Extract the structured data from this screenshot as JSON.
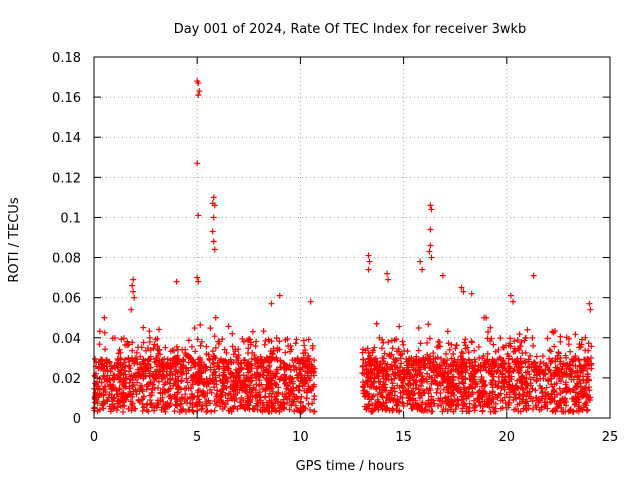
{
  "chart_data": {
    "type": "scatter",
    "title": "Day 001 of 2024, Rate Of TEC Index for receiver 3wkb",
    "xlabel": "GPS time / hours",
    "ylabel": "ROTI / TECUs",
    "xlim": [
      0,
      25
    ],
    "ylim": [
      0,
      0.18
    ],
    "x_ticks": [
      0,
      5,
      10,
      15,
      20,
      25
    ],
    "y_ticks": [
      0,
      0.02,
      0.04,
      0.06,
      0.08,
      0.1,
      0.12,
      0.14,
      0.16,
      0.18
    ],
    "x_tick_labels": [
      "0",
      "5",
      "10",
      "15",
      "20",
      "25"
    ],
    "y_tick_labels": [
      "0",
      "0.02",
      "0.04",
      "0.06",
      "0.08",
      "0.1",
      "0.12",
      "0.14",
      "0.16",
      "0.18"
    ],
    "grid": true,
    "marker": "+",
    "color": "#ff0000",
    "series": [
      {
        "name": "ROTI",
        "segments": [
          {
            "x_start": 0.0,
            "x_end": 10.7,
            "typical_max": 0.035
          },
          {
            "x_start": 13.0,
            "x_end": 24.1,
            "typical_max": 0.035
          }
        ],
        "notable_points": [
          {
            "x": 5.0,
            "y": 0.168
          },
          {
            "x": 5.05,
            "y": 0.167
          },
          {
            "x": 5.1,
            "y": 0.163
          },
          {
            "x": 5.05,
            "y": 0.161
          },
          {
            "x": 5.0,
            "y": 0.127
          },
          {
            "x": 5.05,
            "y": 0.101
          },
          {
            "x": 5.8,
            "y": 0.11
          },
          {
            "x": 5.75,
            "y": 0.107
          },
          {
            "x": 5.85,
            "y": 0.106
          },
          {
            "x": 5.8,
            "y": 0.1
          },
          {
            "x": 5.75,
            "y": 0.093
          },
          {
            "x": 5.8,
            "y": 0.088
          },
          {
            "x": 5.85,
            "y": 0.084
          },
          {
            "x": 5.0,
            "y": 0.07
          },
          {
            "x": 5.05,
            "y": 0.068
          },
          {
            "x": 4.0,
            "y": 0.068
          },
          {
            "x": 1.9,
            "y": 0.069
          },
          {
            "x": 1.85,
            "y": 0.066
          },
          {
            "x": 1.9,
            "y": 0.063
          },
          {
            "x": 1.95,
            "y": 0.06
          },
          {
            "x": 1.8,
            "y": 0.054
          },
          {
            "x": 16.3,
            "y": 0.106
          },
          {
            "x": 16.35,
            "y": 0.104
          },
          {
            "x": 16.3,
            "y": 0.094
          },
          {
            "x": 16.3,
            "y": 0.086
          },
          {
            "x": 16.25,
            "y": 0.083
          },
          {
            "x": 16.35,
            "y": 0.08
          },
          {
            "x": 15.8,
            "y": 0.078
          },
          {
            "x": 13.3,
            "y": 0.081
          },
          {
            "x": 13.35,
            "y": 0.078
          },
          {
            "x": 13.3,
            "y": 0.074
          },
          {
            "x": 15.9,
            "y": 0.074
          },
          {
            "x": 14.2,
            "y": 0.072
          },
          {
            "x": 14.25,
            "y": 0.069
          },
          {
            "x": 16.9,
            "y": 0.071
          },
          {
            "x": 17.8,
            "y": 0.065
          },
          {
            "x": 17.9,
            "y": 0.063
          },
          {
            "x": 18.3,
            "y": 0.062
          },
          {
            "x": 20.2,
            "y": 0.061
          },
          {
            "x": 20.3,
            "y": 0.058
          },
          {
            "x": 21.3,
            "y": 0.071
          },
          {
            "x": 9.0,
            "y": 0.061
          },
          {
            "x": 8.6,
            "y": 0.057
          },
          {
            "x": 10.5,
            "y": 0.058
          },
          {
            "x": 24.0,
            "y": 0.057
          },
          {
            "x": 24.05,
            "y": 0.054
          },
          {
            "x": 0.5,
            "y": 0.05
          },
          {
            "x": 5.9,
            "y": 0.05
          },
          {
            "x": 18.9,
            "y": 0.05
          },
          {
            "x": 19.0,
            "y": 0.05
          },
          {
            "x": 6.7,
            "y": 0.042
          },
          {
            "x": 19.2,
            "y": 0.045
          },
          {
            "x": 21.0,
            "y": 0.044
          },
          {
            "x": 22.2,
            "y": 0.043
          }
        ]
      }
    ]
  }
}
